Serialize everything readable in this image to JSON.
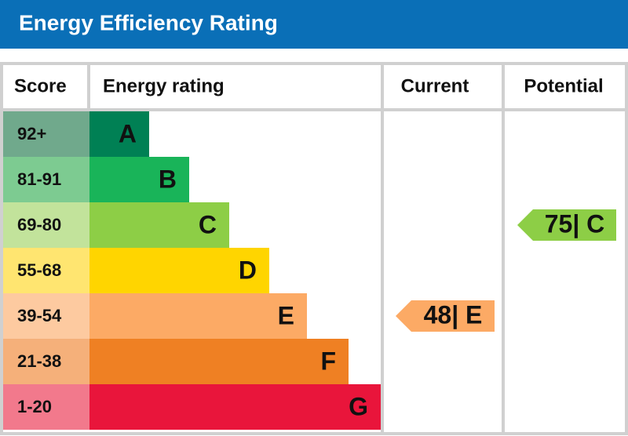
{
  "header": {
    "title": "Energy Efficiency Rating"
  },
  "table": {
    "headers": [
      "Score",
      "Energy rating",
      "Current",
      "Potential"
    ],
    "bands": [
      {
        "score": "92+",
        "letter": "A",
        "color": "#008054",
        "score_color": "#70a98c"
      },
      {
        "score": "81-91",
        "letter": "B",
        "color": "#19b459",
        "score_color": "#7dcb91"
      },
      {
        "score": "69-80",
        "letter": "C",
        "color": "#8dce46",
        "score_color": "#c2e39b"
      },
      {
        "score": "55-68",
        "letter": "D",
        "color": "#ffd500",
        "score_color": "#ffe570"
      },
      {
        "score": "39-54",
        "letter": "E",
        "color": "#fcaa65",
        "score_color": "#fdcaa0"
      },
      {
        "score": "21-38",
        "letter": "F",
        "color": "#ef8023",
        "score_color": "#f5b07a"
      },
      {
        "score": "1-20",
        "letter": "G",
        "color": "#e9153b",
        "score_color": "#f2798c"
      }
    ],
    "current": {
      "label": "48| E",
      "color": "#fcaa65"
    },
    "potential": {
      "label": "75| C",
      "color": "#8dce46"
    }
  }
}
